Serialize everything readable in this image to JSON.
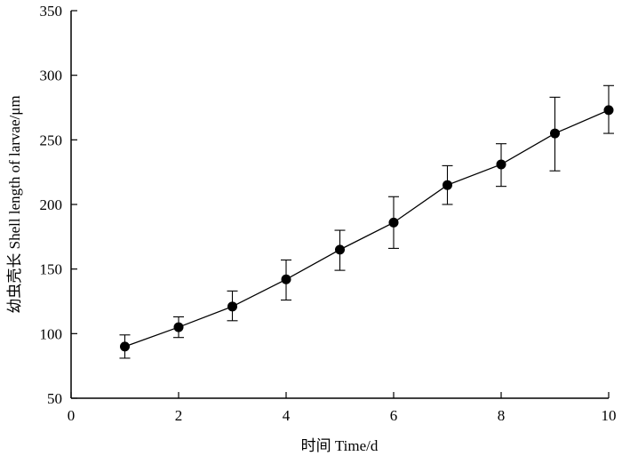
{
  "chart_data": {
    "type": "line",
    "title": "",
    "xlabel": "时间 Time/d",
    "ylabel": "幼虫壳长 Shell length of larvae/μm",
    "xlim": [
      0,
      10
    ],
    "ylim": [
      50,
      350
    ],
    "xticks": [
      0,
      2,
      4,
      6,
      8,
      10
    ],
    "yticks": [
      50,
      100,
      150,
      200,
      250,
      300,
      350
    ],
    "grid": false,
    "legend": "none",
    "series": [
      {
        "x": [
          1,
          2,
          3,
          4,
          5,
          6,
          7,
          8,
          9,
          10
        ],
        "y": [
          90,
          105,
          121,
          142,
          165,
          186,
          215,
          231,
          255,
          273
        ],
        "error_low": [
          81,
          97,
          110,
          126,
          149,
          166,
          200,
          214,
          226,
          255
        ],
        "error_high": [
          99,
          113,
          133,
          157,
          180,
          206,
          230,
          247,
          283,
          292
        ],
        "marker": "circle",
        "color": "#000000"
      }
    ]
  }
}
